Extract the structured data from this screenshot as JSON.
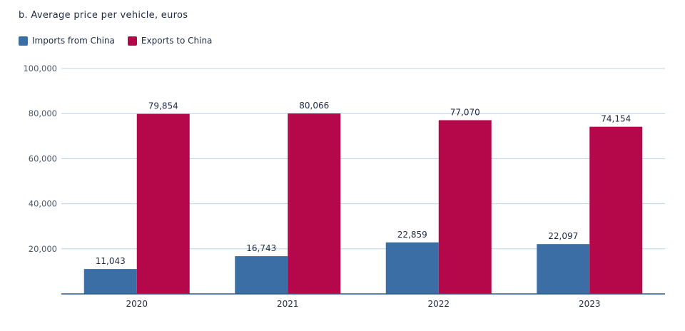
{
  "chart_data": {
    "type": "bar",
    "title": "b. Average price per vehicle, euros",
    "categories": [
      "2020",
      "2021",
      "2022",
      "2023"
    ],
    "series": [
      {
        "name": "Imports from China",
        "color": "#3a6ea5",
        "values": [
          11043,
          16743,
          22859,
          22097
        ],
        "labels": [
          "11,043",
          "16,743",
          "22,859",
          "22,097"
        ]
      },
      {
        "name": "Exports to China",
        "color": "#b5084a",
        "values": [
          79854,
          80066,
          77070,
          74154
        ],
        "labels": [
          "79,854",
          "80,066",
          "77,070",
          "74,154"
        ]
      }
    ],
    "yticks": [
      20000,
      40000,
      60000,
      80000,
      100000
    ],
    "ytick_labels": [
      "20,000",
      "40,000",
      "60,000",
      "80,000",
      "100,000"
    ],
    "ylim": [
      0,
      100000
    ],
    "xlabel": "",
    "ylabel": "",
    "grid": true,
    "legend_position": "top-left"
  }
}
